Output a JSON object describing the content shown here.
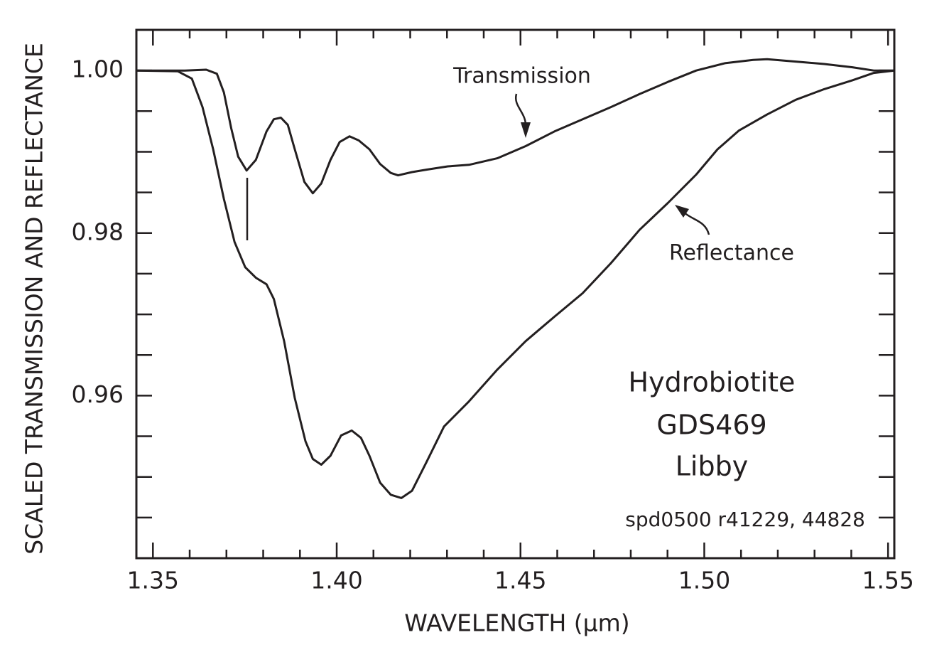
{
  "chart_data": {
    "type": "line",
    "xlabel": "WAVELENGTH (μm)",
    "ylabel": "SCALED TRANSMISSION AND REFLECTANCE",
    "annotations": [
      "Hydrobiotite",
      "GDS469",
      "Libby",
      "spd0500 r41229, 44828"
    ],
    "xlim": [
      1.3455,
      1.5517
    ],
    "ylim": [
      0.94,
      1.005
    ],
    "xticks": [
      1.35,
      {
        "value": 1.4,
        "label": "1.40"
      },
      1.45,
      {
        "value": 1.5,
        "label": "1.50"
      },
      1.55
    ],
    "yticks": [
      0.96,
      0.98,
      {
        "value": 1,
        "label": "1.00"
      }
    ],
    "xticks_minor": [
      1.36,
      1.37,
      1.38,
      1.39,
      1.41,
      1.42,
      1.43,
      1.44,
      1.46,
      1.47,
      1.48,
      1.49,
      1.51,
      1.52,
      1.53,
      1.54
    ],
    "yticks_minor": [
      0.945,
      0.95,
      0.955,
      0.965,
      0.97,
      0.975,
      0.985,
      0.99,
      0.995
    ],
    "series": [
      {
        "name": "Transmission",
        "color": "#231f20",
        "x": [
          1.3456,
          1.3587,
          1.3645,
          1.3674,
          1.3693,
          1.3713,
          1.3732,
          1.3755,
          1.378,
          1.3809,
          1.3829,
          1.3848,
          1.3867,
          1.3886,
          1.3912,
          1.3935,
          1.3958,
          1.3983,
          1.4008,
          1.4035,
          1.406,
          1.4089,
          1.4118,
          1.4147,
          1.4167,
          1.4205,
          1.4244,
          1.4302,
          1.436,
          1.4437,
          1.4514,
          1.4592,
          1.4669,
          1.4746,
          1.4824,
          1.4901,
          1.4978,
          1.5056,
          1.5133,
          1.5171,
          1.5249,
          1.5326,
          1.5403,
          1.5461,
          1.5517
        ],
        "values": [
          1.0,
          1.0,
          1.0001,
          0.9996,
          0.9973,
          0.9929,
          0.9894,
          0.9877,
          0.989,
          0.9925,
          0.994,
          0.9942,
          0.9933,
          0.9903,
          0.9863,
          0.9849,
          0.9861,
          0.989,
          0.9912,
          0.9919,
          0.9914,
          0.9903,
          0.9885,
          0.9874,
          0.9871,
          0.9875,
          0.9878,
          0.9882,
          0.9884,
          0.9892,
          0.9907,
          0.9925,
          0.994,
          0.9955,
          0.9971,
          0.9986,
          1.0,
          1.0009,
          1.0013,
          1.0014,
          1.0011,
          1.0008,
          1.0004,
          1.0,
          1.0
        ]
      },
      {
        "name": "Reflectance",
        "color": "#231f20",
        "x": [
          1.3456,
          1.3568,
          1.3606,
          1.3635,
          1.3664,
          1.3693,
          1.3722,
          1.3751,
          1.378,
          1.3809,
          1.3829,
          1.3857,
          1.3886,
          1.3915,
          1.3935,
          1.3958,
          1.3983,
          1.4012,
          1.4041,
          1.4066,
          1.4089,
          1.4118,
          1.4147,
          1.4176,
          1.4205,
          1.4244,
          1.4292,
          1.436,
          1.4437,
          1.4514,
          1.4592,
          1.4669,
          1.4746,
          1.4824,
          1.4901,
          1.4978,
          1.5036,
          1.5094,
          1.5171,
          1.5249,
          1.5326,
          1.5403,
          1.5461,
          1.5517
        ],
        "values": [
          1.0,
          0.9999,
          0.999,
          0.9955,
          0.9903,
          0.9842,
          0.9789,
          0.9758,
          0.9745,
          0.9737,
          0.9719,
          0.9667,
          0.9597,
          0.9544,
          0.9522,
          0.9515,
          0.9526,
          0.9551,
          0.9557,
          0.9548,
          0.9526,
          0.9493,
          0.9478,
          0.9474,
          0.9483,
          0.9518,
          0.9562,
          0.9593,
          0.9632,
          0.9667,
          0.9697,
          0.9726,
          0.9763,
          0.9804,
          0.9837,
          0.9872,
          0.9903,
          0.9926,
          0.9946,
          0.9964,
          0.9977,
          0.9988,
          0.9997,
          1.0
        ]
      }
    ]
  }
}
